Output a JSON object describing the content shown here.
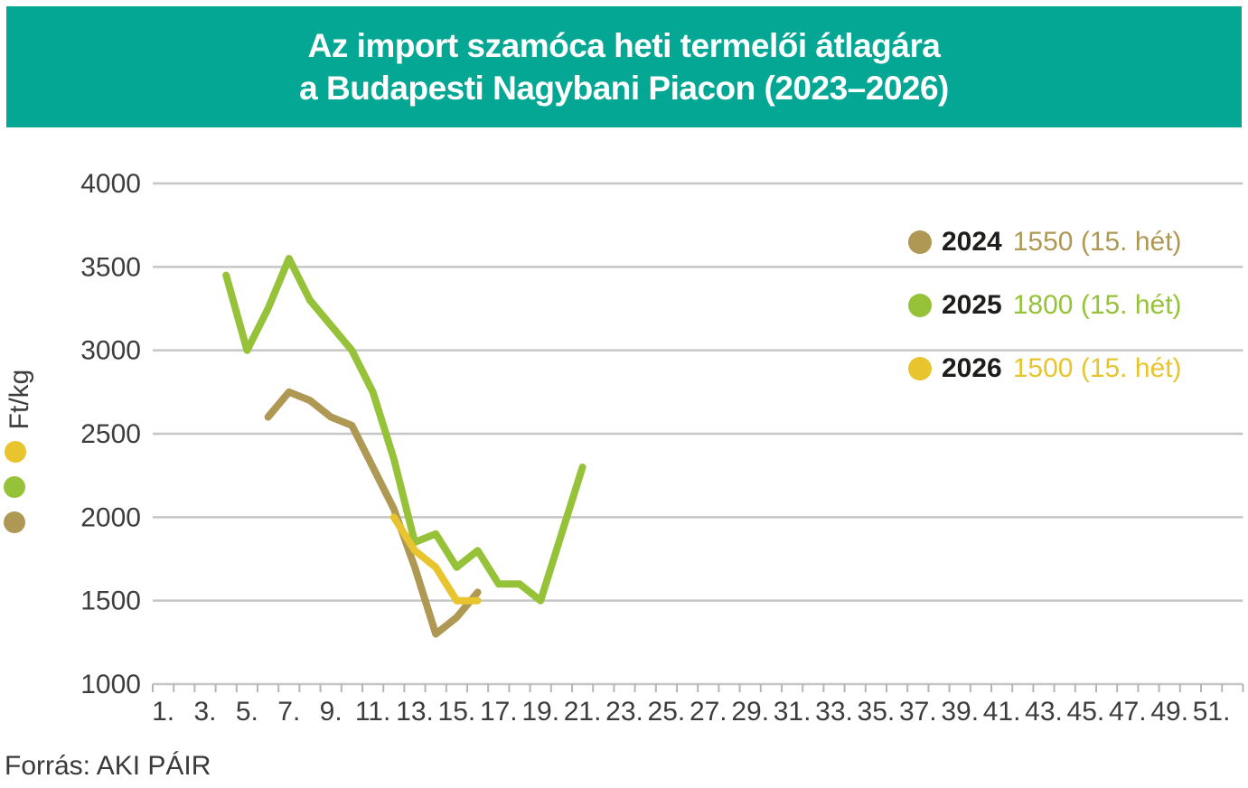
{
  "header": {
    "title_line1": "Az import szamóca heti termelői átlagára",
    "title_line2": "a Budapesti Nagybani Piacon (2023–2026)",
    "bg_color": "#04a694",
    "text_color": "#ffffff"
  },
  "chart_data": {
    "type": "line",
    "title": "Az import szamóca heti termelői átlagára a Budapesti Nagybani Piacon (2023–2026)",
    "xlabel": "",
    "ylabel": "Ft/kg",
    "ylim": [
      1000,
      4000
    ],
    "y_ticks": [
      4000,
      3500,
      3000,
      2500,
      2000,
      1500,
      1000
    ],
    "x_tick_labels": [
      "1.",
      "3.",
      "5.",
      "7.",
      "9.",
      "11.",
      "13.",
      "15.",
      "17.",
      "19.",
      "21.",
      "23.",
      "25.",
      "27.",
      "29.",
      "31.",
      "33.",
      "35.",
      "37.",
      "39.",
      "41.",
      "43.",
      "45.",
      "47.",
      "49.",
      "51."
    ],
    "weeks_total": 52,
    "grid": true,
    "gridline_color": "#c6c6c6",
    "axis_text_color": "#3d3d3d",
    "series": [
      {
        "name": "2024",
        "color": "#ae9854",
        "points": [
          [
            5,
            2600
          ],
          [
            6,
            2750
          ],
          [
            7,
            2700
          ],
          [
            8,
            2600
          ],
          [
            9,
            2550
          ],
          [
            10,
            2300
          ],
          [
            11,
            2050
          ],
          [
            12,
            1700
          ],
          [
            13,
            1300
          ],
          [
            14,
            1400
          ],
          [
            15,
            1550
          ]
        ]
      },
      {
        "name": "2025",
        "color": "#96c23a",
        "points": [
          [
            3,
            3450
          ],
          [
            4,
            3000
          ],
          [
            5,
            3250
          ],
          [
            6,
            3550
          ],
          [
            7,
            3300
          ],
          [
            8,
            3150
          ],
          [
            9,
            3000
          ],
          [
            10,
            2750
          ],
          [
            11,
            2350
          ],
          [
            12,
            1850
          ],
          [
            13,
            1900
          ],
          [
            14,
            1700
          ],
          [
            15,
            1800
          ],
          [
            16,
            1600
          ],
          [
            17,
            1600
          ],
          [
            18,
            1500
          ],
          [
            19,
            1900
          ],
          [
            20,
            2300
          ]
        ]
      },
      {
        "name": "2026",
        "color": "#e8c42f",
        "points": [
          [
            11,
            2000
          ],
          [
            12,
            1800
          ],
          [
            13,
            1700
          ],
          [
            14,
            1500
          ],
          [
            15,
            1500
          ]
        ]
      }
    ],
    "legend": [
      {
        "year": "2024",
        "value_text": "1550 (15. hét)",
        "color": "#ae9854"
      },
      {
        "year": "2025",
        "value_text": "1800 (15. hét)",
        "color": "#96c23a"
      },
      {
        "year": "2026",
        "value_text": "1500 (15. hét)",
        "color": "#e8c42f"
      }
    ],
    "legend_position": "right-inside",
    "left_markers": [
      "#e8c42f",
      "#96c23a",
      "#ae9854"
    ]
  },
  "footer": {
    "source": "Forrás: AKI PÁIR"
  }
}
